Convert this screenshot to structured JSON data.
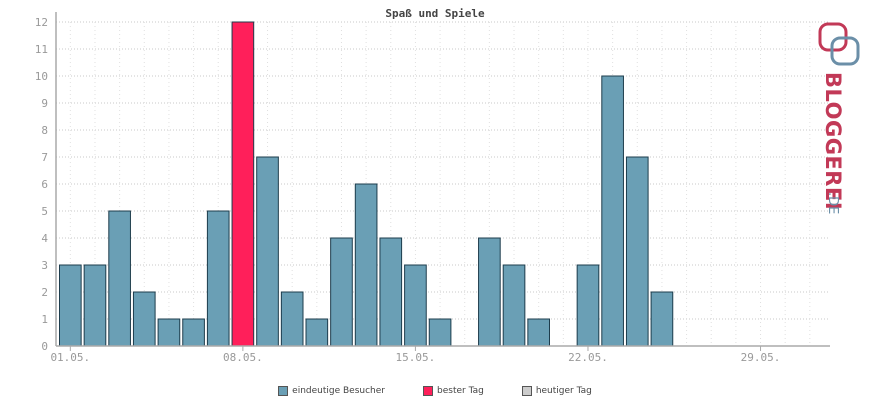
{
  "chart_data": {
    "type": "bar",
    "title": "Spaß und Spiele",
    "xlabel": "",
    "ylabel": "",
    "ylim": [
      0,
      12
    ],
    "yticks": [
      "0",
      "1",
      "2",
      "3",
      "4",
      "5",
      "6",
      "7",
      "8",
      "9",
      "10",
      "11",
      "12"
    ],
    "days": [
      1,
      2,
      3,
      4,
      5,
      6,
      7,
      8,
      9,
      10,
      11,
      12,
      13,
      14,
      15,
      16,
      17,
      18,
      19,
      20,
      21,
      22,
      23,
      24,
      25,
      26,
      27,
      28,
      29,
      30,
      31
    ],
    "values": [
      3,
      3,
      5,
      2,
      1,
      1,
      5,
      12,
      7,
      2,
      1,
      4,
      6,
      4,
      3,
      1,
      0,
      4,
      3,
      1,
      0,
      3,
      10,
      7,
      2,
      0,
      0,
      0,
      0,
      0,
      0
    ],
    "best_day": 8,
    "xtick_labels": [
      {
        "day": 1,
        "label": "01.05."
      },
      {
        "day": 8,
        "label": "08.05."
      },
      {
        "day": 15,
        "label": "15.05."
      },
      {
        "day": 22,
        "label": "22.05."
      },
      {
        "day": 29,
        "label": "29.05."
      }
    ],
    "grid": true,
    "legend_position": "bottom",
    "series": [
      {
        "name": "eindeutige Besucher",
        "color": "#6a9fb5"
      },
      {
        "name": "bester Tag",
        "color": "#ff1f5a"
      },
      {
        "name": "heutiger Tag",
        "color": "#cccccc"
      }
    ]
  },
  "logo": {
    "text": "BLOGGEREI",
    "suffix": ".DE",
    "colors": {
      "text": "#c23957",
      "suffix": "#6b8fa8"
    }
  }
}
